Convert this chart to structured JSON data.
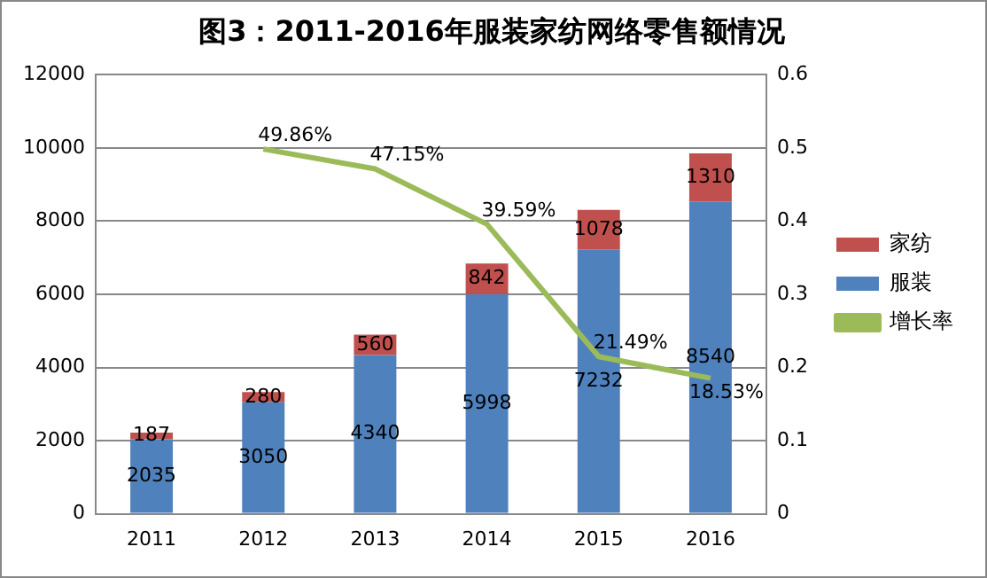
{
  "chart_data": {
    "type": "bar",
    "title": "图3：2011-2016年服装家纺网络零售额情况",
    "categories": [
      "2011",
      "2012",
      "2013",
      "2014",
      "2015",
      "2016"
    ],
    "stacked": true,
    "series": [
      {
        "name": "服装",
        "color": "#4f81bd",
        "values": [
          2035,
          3050,
          4340,
          5998,
          7232,
          8540
        ],
        "value_labels": [
          "2035",
          "3050",
          "4340",
          "5998",
          "7232",
          "8540"
        ]
      },
      {
        "name": "家纺",
        "color": "#c0504d",
        "values": [
          187,
          280,
          560,
          842,
          1078,
          1310
        ],
        "value_labels": [
          "187",
          "280",
          "560",
          "842",
          "1078",
          "1310"
        ]
      },
      {
        "name": "增长率",
        "type": "line",
        "axis": "y2",
        "color": "#9bbb59",
        "values": [
          null,
          0.4986,
          0.4715,
          0.3959,
          0.2149,
          0.1853
        ],
        "value_labels": [
          null,
          "49.86%",
          "47.15%",
          "39.59%",
          "21.49%",
          "18.53%"
        ]
      }
    ],
    "ylim": [
      0,
      12000
    ],
    "yticks": [
      0,
      2000,
      4000,
      6000,
      8000,
      10000,
      12000
    ],
    "y2lim": [
      0,
      0.6
    ],
    "y2ticks": [
      0,
      0.1,
      0.2,
      0.3,
      0.4,
      0.5,
      0.6
    ],
    "grid": "y",
    "legend": "right",
    "marker": "none",
    "line_style": "solid"
  }
}
